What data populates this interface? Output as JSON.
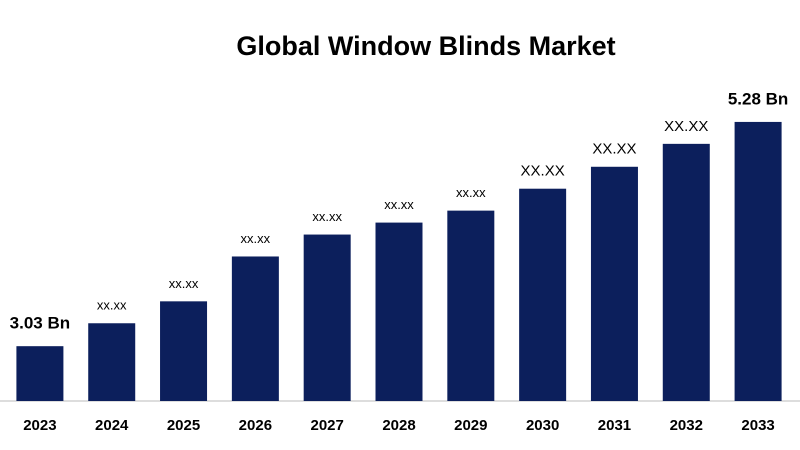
{
  "chart_data": {
    "type": "bar",
    "title": "Global Window Blinds Market",
    "categories": [
      "2023",
      "2024",
      "2025",
      "2026",
      "2027",
      "2028",
      "2029",
      "2030",
      "2031",
      "2032",
      "2033"
    ],
    "values": [
      3.03,
      3.26,
      3.48,
      3.93,
      4.15,
      4.27,
      4.39,
      4.61,
      4.83,
      5.06,
      5.28
    ],
    "value_labels": [
      "3.03 Bn",
      "xx.xx",
      "xx.xx",
      "xx.xx",
      "xx.xx",
      "xx.xx",
      "xx.xx",
      "XX.XX",
      "XX.XX",
      "XX.XX",
      "5.28 Bn"
    ],
    "color": "#0c1f5c",
    "ylim": [
      2.48,
      5.5
    ]
  }
}
